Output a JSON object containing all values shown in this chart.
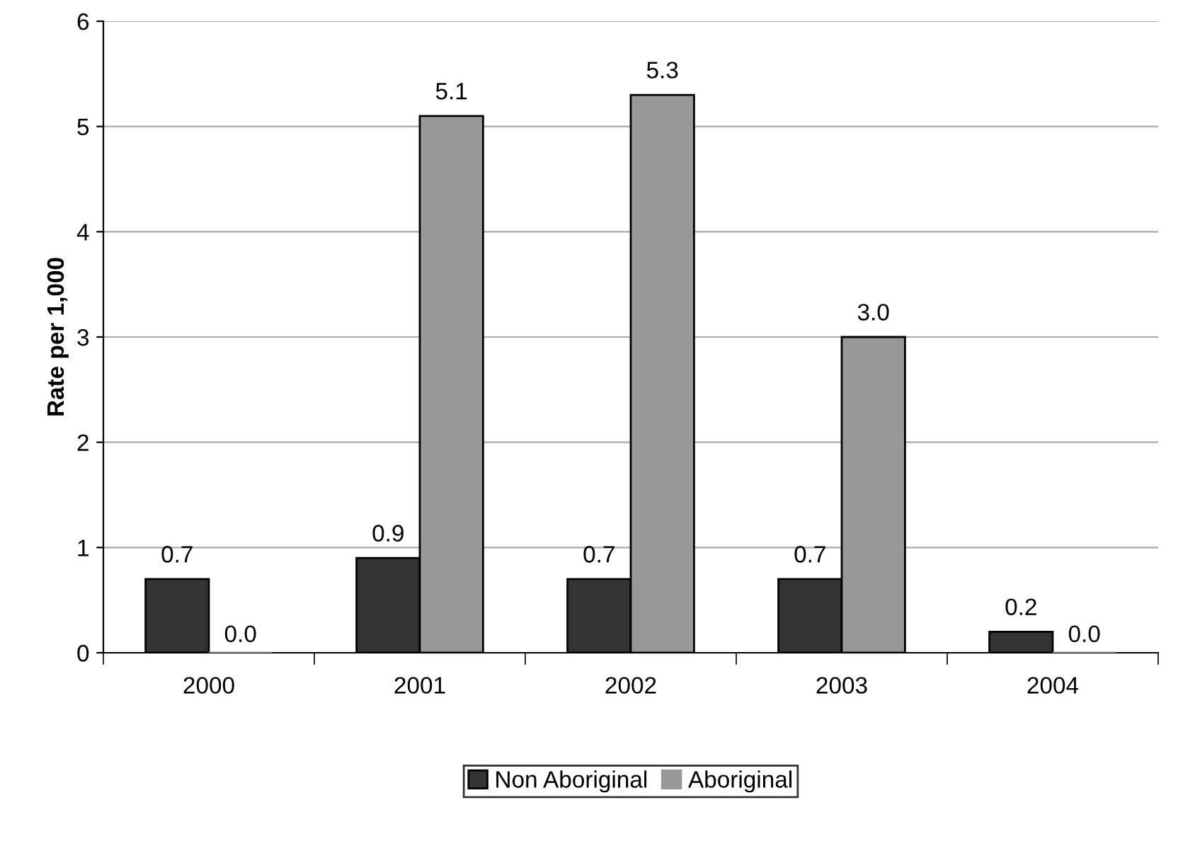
{
  "chart_data": {
    "type": "bar",
    "ylabel": "Rate per 1,000",
    "categories": [
      "2000",
      "2001",
      "2002",
      "2003",
      "2004"
    ],
    "series": [
      {
        "name": "Non Aboriginal",
        "color": "#333333",
        "values": [
          0.7,
          0.9,
          0.7,
          0.7,
          0.2
        ],
        "value_labels": [
          "0.7",
          "0.9",
          "0.7",
          "0.7",
          "0.2"
        ]
      },
      {
        "name": "Aboriginal",
        "color": "#999999",
        "values": [
          0.0,
          5.1,
          5.3,
          3.0,
          0.0
        ],
        "value_labels": [
          "0.0",
          "5.1",
          "5.3",
          "3.0",
          "0.0"
        ]
      }
    ],
    "ylim": [
      0,
      6
    ],
    "yticks": [
      0,
      1,
      2,
      3,
      4,
      5,
      6
    ],
    "grid": "y",
    "legend": "bottom"
  }
}
